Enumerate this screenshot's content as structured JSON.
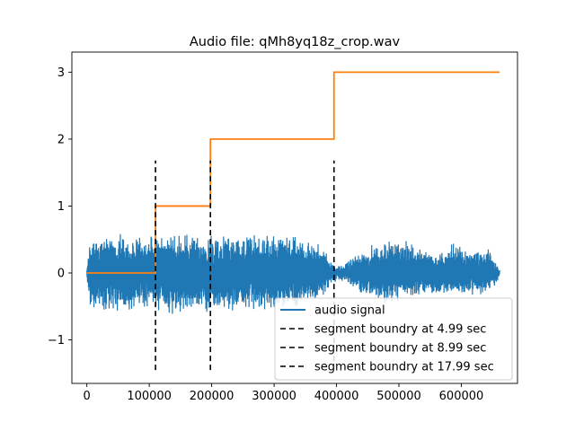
{
  "chart_data": {
    "type": "line",
    "title": "Audio file: qMh8yq18z_crop.wav",
    "xlabel": "",
    "ylabel": "",
    "xlim": [
      -24000,
      690000
    ],
    "ylim": [
      -1.65,
      3.3
    ],
    "x_ticks": [
      0,
      100000,
      200000,
      300000,
      400000,
      500000,
      600000
    ],
    "x_tick_labels": [
      "0",
      "100000",
      "200000",
      "300000",
      "400000",
      "500000",
      "600000"
    ],
    "y_ticks": [
      -1,
      0,
      1,
      2,
      3
    ],
    "y_tick_labels": [
      "−1",
      "0",
      "1",
      "2",
      "3"
    ],
    "grid": false,
    "legend_position": "lower-right",
    "series": [
      {
        "name": "audio signal",
        "kind": "waveform",
        "color": "#1f77b4",
        "x_range": [
          0,
          661500
        ],
        "envelope": {
          "x": [
            0,
            5000,
            20000,
            40000,
            60000,
            80000,
            100000,
            110000,
            120000,
            150000,
            180000,
            198000,
            210000,
            240000,
            270000,
            300000,
            330000,
            360000,
            380000,
            396000,
            410000,
            440000,
            470000,
            500000,
            530000,
            560000,
            590000,
            620000,
            645000,
            661500
          ],
          "upper": [
            0.05,
            0.55,
            0.62,
            0.55,
            0.6,
            0.55,
            0.6,
            0.55,
            0.58,
            0.65,
            0.55,
            0.58,
            0.6,
            0.58,
            0.62,
            0.58,
            0.56,
            0.5,
            0.42,
            0.12,
            0.12,
            0.35,
            0.5,
            0.5,
            0.42,
            0.3,
            0.45,
            0.35,
            0.38,
            0.05
          ],
          "lower": [
            -0.05,
            -0.55,
            -0.6,
            -0.6,
            -0.62,
            -0.55,
            -0.62,
            -0.6,
            -0.6,
            -0.68,
            -0.58,
            -0.62,
            -0.62,
            -0.6,
            -0.6,
            -0.56,
            -0.55,
            -0.45,
            -0.4,
            -0.12,
            -0.12,
            -0.3,
            -0.5,
            -0.42,
            -0.35,
            -0.35,
            -0.38,
            -0.35,
            -0.32,
            -0.05
          ]
        }
      },
      {
        "name": "",
        "kind": "step",
        "color": "#ff7f0e",
        "x": [
          0,
          110000,
          110000,
          198000,
          198000,
          396000,
          396000,
          661500
        ],
        "y": [
          0,
          0,
          1,
          1,
          2,
          2,
          3,
          3
        ]
      }
    ],
    "vlines": [
      {
        "name": "segment boundry at 4.99 sec",
        "x": 110000,
        "ymin": -1.45,
        "ymax": 1.68,
        "color": "#000000",
        "style": "dashed"
      },
      {
        "name": "segment boundry at 8.99 sec",
        "x": 198000,
        "ymin": -1.45,
        "ymax": 1.68,
        "color": "#000000",
        "style": "dashed"
      },
      {
        "name": "segment boundry at 17.99 sec",
        "x": 396000,
        "ymin": -1.45,
        "ymax": 1.68,
        "color": "#000000",
        "style": "dashed"
      }
    ],
    "legend_entries": [
      {
        "label": "audio signal",
        "color": "#1f77b4",
        "style": "solid"
      },
      {
        "label": "segment boundry at 4.99 sec",
        "color": "#000000",
        "style": "dashed"
      },
      {
        "label": "segment boundry at 8.99 sec",
        "color": "#000000",
        "style": "dashed"
      },
      {
        "label": "segment boundry at 17.99 sec",
        "color": "#000000",
        "style": "dashed"
      }
    ]
  }
}
